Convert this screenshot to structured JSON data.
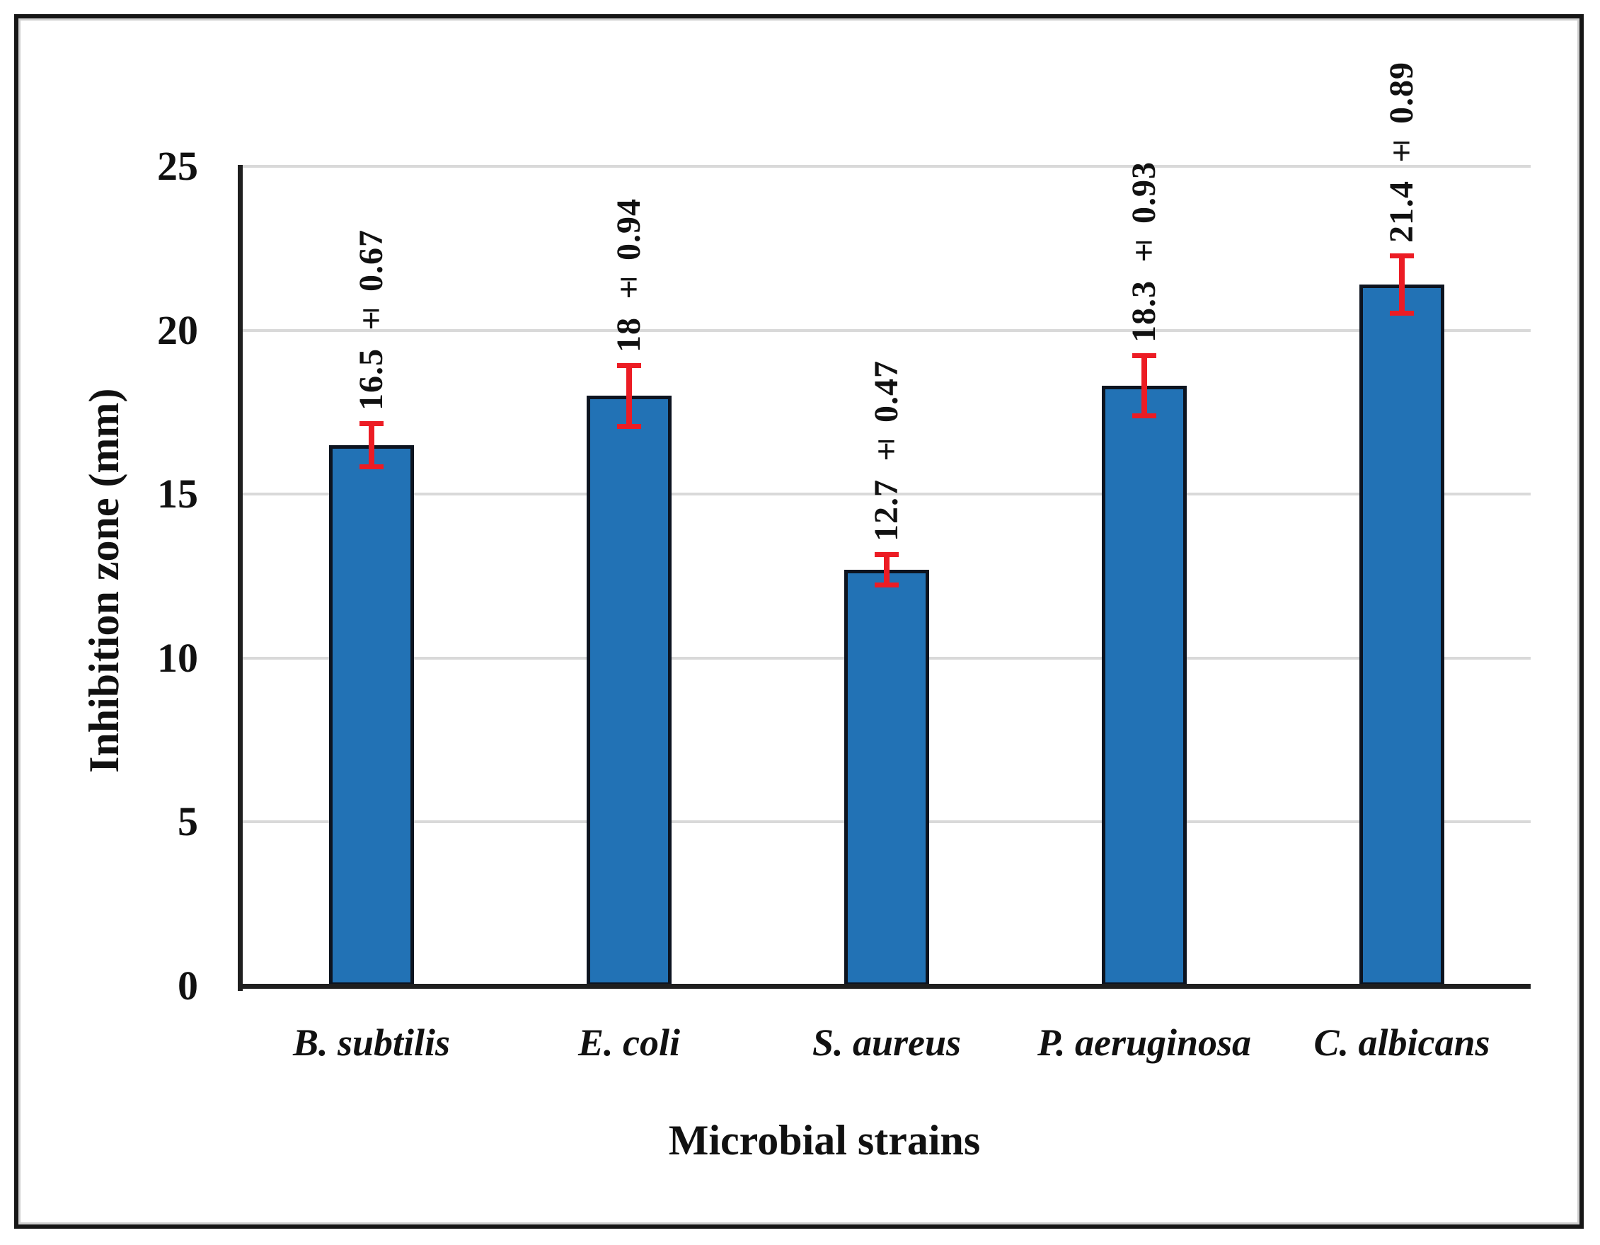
{
  "chart_data": {
    "type": "bar",
    "title": "",
    "xlabel": "Microbial strains",
    "ylabel": "Inhibition zone (mm)",
    "categories": [
      "B. subtilis",
      "E. coli",
      "S. aureus",
      "P. aeruginosa",
      "C. albicans"
    ],
    "series": [
      {
        "name": "Inhibition zone (mm)",
        "values": [
          16.5,
          18,
          12.7,
          18.3,
          21.4
        ],
        "errors": [
          0.67,
          0.94,
          0.47,
          0.93,
          0.89
        ]
      }
    ],
    "bar_value_labels": [
      "16.5 ± 0.67",
      "18 ± 0.94",
      "12.7 ± 0.47",
      "18.3 ± 0.93",
      "21.4 ± 0.89"
    ],
    "yticks": [
      "0",
      "5",
      "10",
      "15",
      "20",
      "25"
    ],
    "ylim": [
      0,
      25
    ],
    "ytick_interval": 5,
    "grid": "horizontal",
    "legend": "none",
    "colors": {
      "bar_fill": "#2272b5",
      "bar_border": "#0d1420",
      "error_bar": "#ec1c24",
      "gridline": "#d9d9d9",
      "axis": "#1f1f1f",
      "frame_border": "#161616",
      "background": "#ffffff",
      "text": "#111111"
    }
  }
}
